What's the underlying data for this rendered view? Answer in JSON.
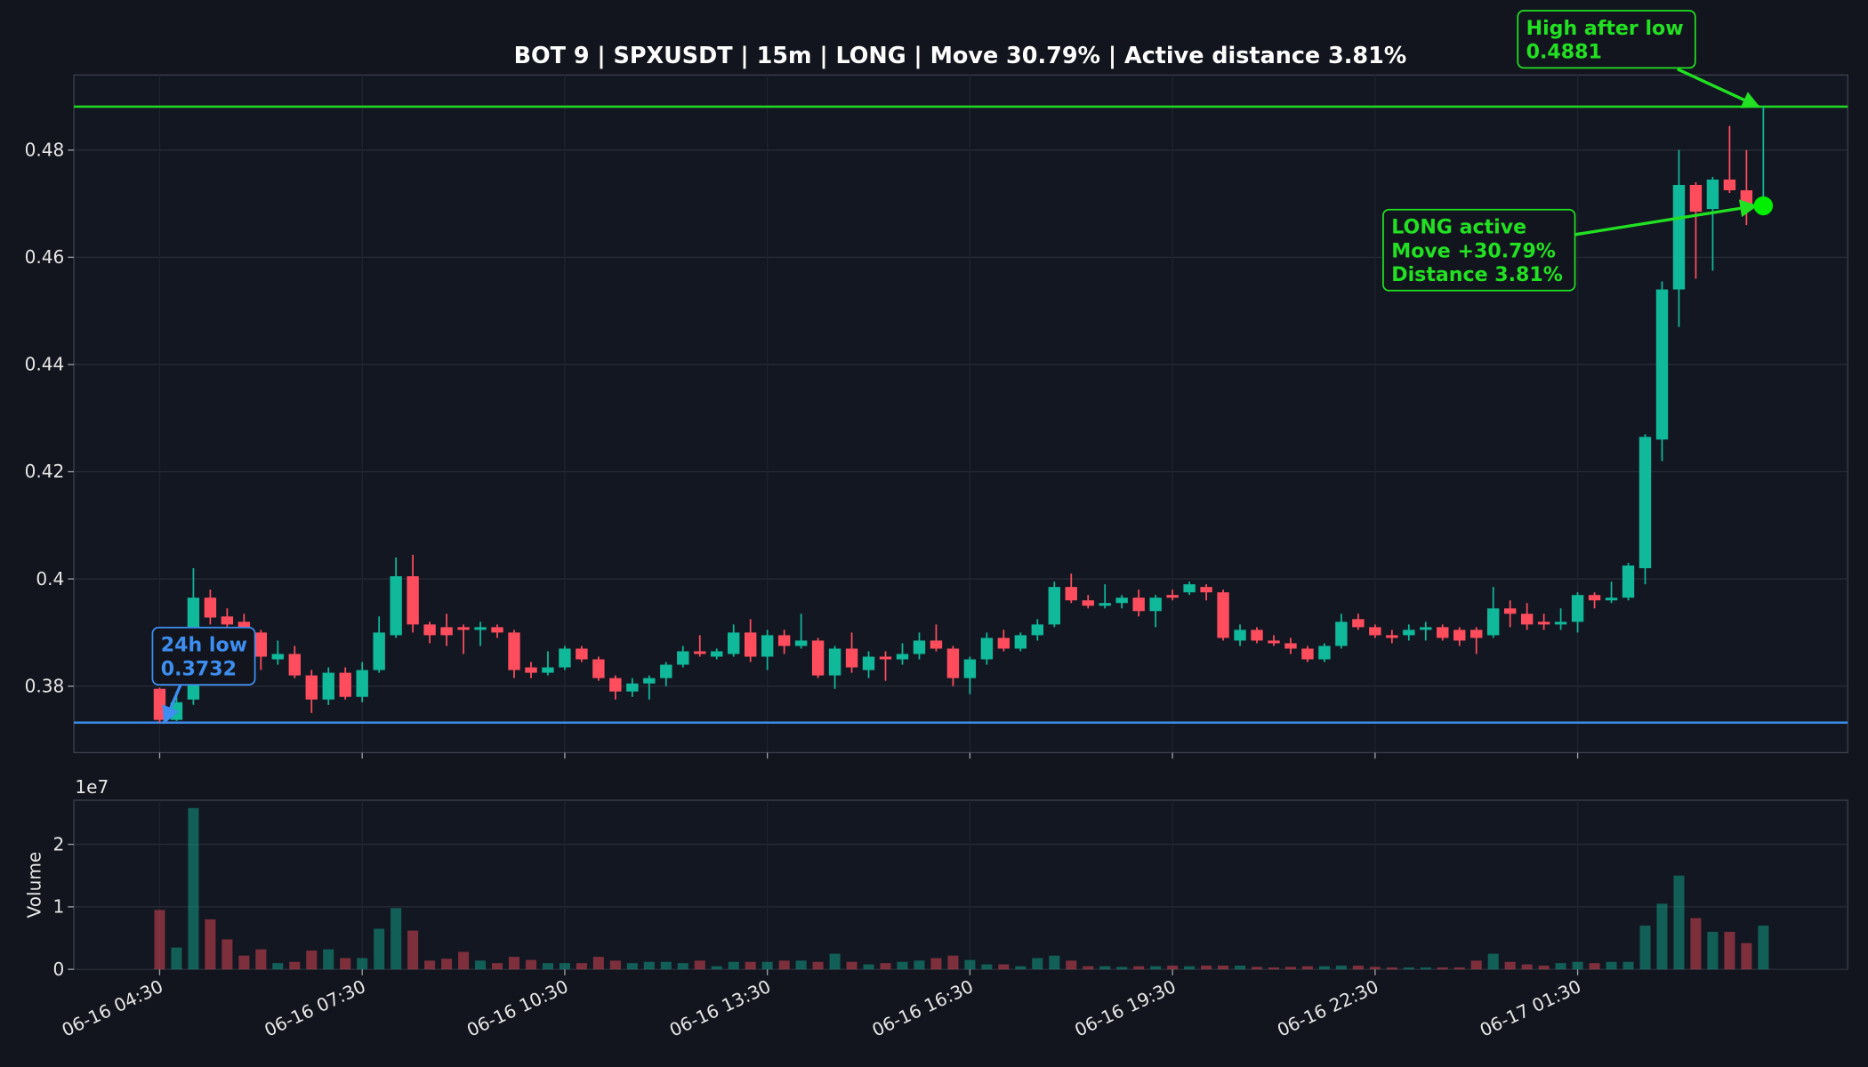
{
  "chart_data": {
    "type": "candlestick",
    "title": "BOT 9 | SPXUSDT | 15m | LONG | Move 30.79% | Active distance 3.81%",
    "x": [
      "06-16 04:30",
      "06-16 04:45",
      "06-16 05:00",
      "06-16 05:15",
      "06-16 05:30",
      "06-16 05:45",
      "06-16 06:00",
      "06-16 06:15",
      "06-16 06:30",
      "06-16 06:45",
      "06-16 07:00",
      "06-16 07:15",
      "06-16 07:30",
      "06-16 07:45",
      "06-16 08:00",
      "06-16 08:15",
      "06-16 08:30",
      "06-16 08:45",
      "06-16 09:00",
      "06-16 09:15",
      "06-16 09:30",
      "06-16 09:45",
      "06-16 10:00",
      "06-16 10:15",
      "06-16 10:30",
      "06-16 10:45",
      "06-16 11:00",
      "06-16 11:15",
      "06-16 11:30",
      "06-16 11:45",
      "06-16 12:00",
      "06-16 12:15",
      "06-16 12:30",
      "06-16 12:45",
      "06-16 13:00",
      "06-16 13:15",
      "06-16 13:30",
      "06-16 13:45",
      "06-16 14:00",
      "06-16 14:15",
      "06-16 14:30",
      "06-16 14:45",
      "06-16 15:00",
      "06-16 15:15",
      "06-16 15:30",
      "06-16 15:45",
      "06-16 16:00",
      "06-16 16:15",
      "06-16 16:30",
      "06-16 16:45",
      "06-16 17:00",
      "06-16 17:15",
      "06-16 17:30",
      "06-16 17:45",
      "06-16 18:00",
      "06-16 18:15",
      "06-16 18:30",
      "06-16 18:45",
      "06-16 19:00",
      "06-16 19:15",
      "06-16 19:30",
      "06-16 19:45",
      "06-16 20:00",
      "06-16 20:15",
      "06-16 20:30",
      "06-16 20:45",
      "06-16 21:00",
      "06-16 21:15",
      "06-16 21:30",
      "06-16 21:45",
      "06-16 22:00",
      "06-16 22:15",
      "06-16 22:30",
      "06-16 22:45",
      "06-16 23:00",
      "06-16 23:15",
      "06-16 23:30",
      "06-16 23:45",
      "06-17 00:00",
      "06-17 00:15",
      "06-17 00:30",
      "06-17 00:45",
      "06-17 01:00",
      "06-17 01:15",
      "06-17 01:30",
      "06-17 01:45",
      "06-17 02:00",
      "06-17 02:15",
      "06-17 02:30",
      "06-17 02:45",
      "06-17 03:00",
      "06-17 03:15",
      "06-17 03:30",
      "06-17 03:45",
      "06-17 04:00",
      "06-17 04:15"
    ],
    "open": [
      0.3795,
      0.3737,
      0.3775,
      0.3965,
      0.393,
      0.392,
      0.39,
      0.385,
      0.386,
      0.382,
      0.3775,
      0.3825,
      0.378,
      0.383,
      0.3895,
      0.4005,
      0.3915,
      0.391,
      0.391,
      0.3905,
      0.391,
      0.39,
      0.3835,
      0.3825,
      0.3835,
      0.387,
      0.385,
      0.3815,
      0.379,
      0.3805,
      0.3815,
      0.384,
      0.3865,
      0.3855,
      0.386,
      0.39,
      0.3855,
      0.3895,
      0.3875,
      0.3885,
      0.382,
      0.387,
      0.383,
      0.3855,
      0.385,
      0.386,
      0.3885,
      0.387,
      0.3815,
      0.385,
      0.389,
      0.387,
      0.3895,
      0.3915,
      0.3985,
      0.396,
      0.395,
      0.3955,
      0.3965,
      0.394,
      0.397,
      0.3975,
      0.3985,
      0.3975,
      0.3885,
      0.3905,
      0.3885,
      0.388,
      0.387,
      0.385,
      0.3875,
      0.3925,
      0.391,
      0.3895,
      0.3895,
      0.3905,
      0.391,
      0.3905,
      0.3905,
      0.3895,
      0.3945,
      0.3935,
      0.392,
      0.3915,
      0.392,
      0.397,
      0.396,
      0.3965,
      0.402,
      0.426,
      0.454,
      0.4735,
      0.469,
      0.4745,
      0.4725,
      0.4695
    ],
    "high": [
      0.3797,
      0.379,
      0.402,
      0.398,
      0.3945,
      0.3935,
      0.3905,
      0.3885,
      0.3875,
      0.383,
      0.3835,
      0.3835,
      0.3845,
      0.393,
      0.404,
      0.4045,
      0.392,
      0.3935,
      0.3915,
      0.392,
      0.3915,
      0.3905,
      0.3845,
      0.3865,
      0.3875,
      0.3875,
      0.3855,
      0.382,
      0.3815,
      0.382,
      0.3845,
      0.3875,
      0.3895,
      0.387,
      0.3915,
      0.3925,
      0.3905,
      0.3905,
      0.3935,
      0.389,
      0.3875,
      0.39,
      0.3865,
      0.3865,
      0.388,
      0.39,
      0.3915,
      0.3875,
      0.3855,
      0.39,
      0.3905,
      0.39,
      0.3925,
      0.3995,
      0.401,
      0.397,
      0.399,
      0.397,
      0.398,
      0.397,
      0.398,
      0.3995,
      0.399,
      0.398,
      0.3915,
      0.391,
      0.3895,
      0.389,
      0.3875,
      0.388,
      0.3935,
      0.3935,
      0.3915,
      0.3905,
      0.3915,
      0.392,
      0.3915,
      0.391,
      0.391,
      0.3985,
      0.396,
      0.3955,
      0.3935,
      0.3945,
      0.3975,
      0.3975,
      0.3995,
      0.403,
      0.427,
      0.4555,
      0.48,
      0.474,
      0.475,
      0.4845,
      0.48,
      0.4881
    ],
    "low": [
      0.3732,
      0.3735,
      0.3765,
      0.3915,
      0.3905,
      0.385,
      0.383,
      0.384,
      0.3815,
      0.375,
      0.3765,
      0.3775,
      0.377,
      0.3825,
      0.389,
      0.39,
      0.388,
      0.3875,
      0.386,
      0.3875,
      0.389,
      0.3815,
      0.3815,
      0.382,
      0.383,
      0.3845,
      0.381,
      0.3775,
      0.378,
      0.3775,
      0.38,
      0.3835,
      0.3855,
      0.385,
      0.3855,
      0.3845,
      0.383,
      0.386,
      0.387,
      0.3815,
      0.3795,
      0.3825,
      0.3815,
      0.381,
      0.384,
      0.385,
      0.3865,
      0.38,
      0.3785,
      0.384,
      0.3865,
      0.3865,
      0.3885,
      0.391,
      0.3955,
      0.3945,
      0.3945,
      0.3945,
      0.393,
      0.391,
      0.396,
      0.397,
      0.396,
      0.3885,
      0.3875,
      0.388,
      0.3875,
      0.386,
      0.3845,
      0.3845,
      0.387,
      0.3905,
      0.389,
      0.388,
      0.3885,
      0.3885,
      0.3885,
      0.3875,
      0.386,
      0.389,
      0.391,
      0.3905,
      0.3905,
      0.3905,
      0.39,
      0.3945,
      0.3955,
      0.396,
      0.399,
      0.422,
      0.447,
      0.456,
      0.4575,
      0.472,
      0.466,
      0.4685
    ],
    "close": [
      0.3737,
      0.377,
      0.3965,
      0.3928,
      0.3915,
      0.39,
      0.3855,
      0.386,
      0.382,
      0.3775,
      0.3825,
      0.378,
      0.383,
      0.39,
      0.4005,
      0.3915,
      0.3895,
      0.3895,
      0.3905,
      0.391,
      0.39,
      0.383,
      0.3825,
      0.3835,
      0.387,
      0.385,
      0.3815,
      0.379,
      0.3805,
      0.3815,
      0.384,
      0.3865,
      0.386,
      0.3865,
      0.39,
      0.3855,
      0.3895,
      0.3875,
      0.3885,
      0.382,
      0.387,
      0.3835,
      0.3855,
      0.385,
      0.386,
      0.3885,
      0.387,
      0.3815,
      0.385,
      0.389,
      0.387,
      0.3895,
      0.3915,
      0.3985,
      0.396,
      0.395,
      0.3955,
      0.3965,
      0.394,
      0.3965,
      0.3965,
      0.399,
      0.3975,
      0.389,
      0.3905,
      0.3885,
      0.388,
      0.387,
      0.385,
      0.3875,
      0.392,
      0.391,
      0.3895,
      0.389,
      0.3905,
      0.391,
      0.389,
      0.3885,
      0.389,
      0.3945,
      0.3935,
      0.3915,
      0.3915,
      0.392,
      0.397,
      0.396,
      0.3965,
      0.4025,
      0.4265,
      0.454,
      0.4735,
      0.4685,
      0.4745,
      0.4725,
      0.4695,
      0.4696
    ],
    "volume": [
      9500000,
      3500000,
      25800000,
      8000000,
      4800000,
      2200000,
      3200000,
      1000000,
      1200000,
      3000000,
      3200000,
      1800000,
      1800000,
      6500000,
      9800000,
      6200000,
      1400000,
      1700000,
      2800000,
      1400000,
      1000000,
      2000000,
      1500000,
      1000000,
      1000000,
      1000000,
      2000000,
      1400000,
      1000000,
      1200000,
      1200000,
      1000000,
      1400000,
      500000,
      1200000,
      1200000,
      1200000,
      1400000,
      1400000,
      1200000,
      2500000,
      1200000,
      800000,
      1000000,
      1200000,
      1400000,
      1800000,
      2200000,
      1500000,
      800000,
      800000,
      500000,
      1800000,
      2200000,
      1400000,
      500000,
      500000,
      400000,
      500000,
      500000,
      600000,
      500000,
      600000,
      600000,
      600000,
      400000,
      300000,
      400000,
      500000,
      500000,
      600000,
      600000,
      400000,
      300000,
      300000,
      300000,
      300000,
      300000,
      1400000,
      2500000,
      1200000,
      800000,
      600000,
      1000000,
      1200000,
      1000000,
      1200000,
      1200000,
      7000000,
      10500000,
      15000000,
      8200000,
      6000000,
      6000000,
      4200000,
      7000000
    ],
    "up_color": "#10b99a",
    "down_color": "#ff4d5e",
    "ylim": [
      0.3676,
      0.494
    ],
    "yticks": [
      0.38,
      0.4,
      0.42,
      0.44,
      0.46,
      0.48
    ],
    "volume_label": "Volume",
    "volume_offset_label": "1e7",
    "volume_ylim": [
      0,
      27050000
    ],
    "volume_yticks": [
      0,
      {
        "value": 10000000,
        "label": "1"
      },
      {
        "value": 20000000,
        "label": "2"
      }
    ],
    "xticks": [
      "06-16 04:30",
      "06-16 07:30",
      "06-16 10:30",
      "06-16 13:30",
      "06-16 16:30",
      "06-16 19:30",
      "06-16 22:30",
      "06-17 01:30"
    ],
    "grid": true,
    "hlines": [
      {
        "value": 0.4881,
        "color": "#22d422"
      },
      {
        "value": 0.3732,
        "color": "#3a86e0"
      }
    ],
    "annotations": [
      {
        "lines": [
          "24h low",
          "0.3732"
        ],
        "color": "#3d8ef0"
      },
      {
        "lines": [
          "High after low",
          "0.4881"
        ],
        "color": "#22e022"
      },
      {
        "lines": [
          "LONG active",
          "Move +30.79%",
          "Distance 3.81%"
        ],
        "color": "#22e022"
      }
    ],
    "marker_color": "#00ee00"
  }
}
